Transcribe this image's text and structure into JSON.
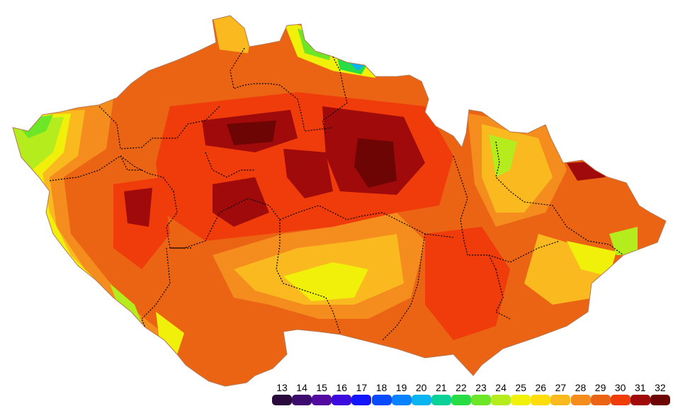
{
  "legend": {
    "items": [
      {
        "label": "13",
        "color": "#2a0a3c"
      },
      {
        "label": "14",
        "color": "#3d0a6e"
      },
      {
        "label": "15",
        "color": "#520aa0"
      },
      {
        "label": "16",
        "color": "#3c0adc"
      },
      {
        "label": "17",
        "color": "#1414ff"
      },
      {
        "label": "18",
        "color": "#0a4aff"
      },
      {
        "label": "19",
        "color": "#0a82ff"
      },
      {
        "label": "20",
        "color": "#0ab4f0"
      },
      {
        "label": "21",
        "color": "#0ad296"
      },
      {
        "label": "22",
        "color": "#28dc46"
      },
      {
        "label": "23",
        "color": "#6ee628"
      },
      {
        "label": "24",
        "color": "#b4ec1e"
      },
      {
        "label": "25",
        "color": "#f0f00a"
      },
      {
        "label": "26",
        "color": "#ffdc0a"
      },
      {
        "label": "27",
        "color": "#fab91e"
      },
      {
        "label": "28",
        "color": "#f58c1e"
      },
      {
        "label": "29",
        "color": "#eb6414"
      },
      {
        "label": "30",
        "color": "#f03c0a"
      },
      {
        "label": "31",
        "color": "#a00a0a"
      },
      {
        "label": "32",
        "color": "#6e0505"
      }
    ]
  }
}
